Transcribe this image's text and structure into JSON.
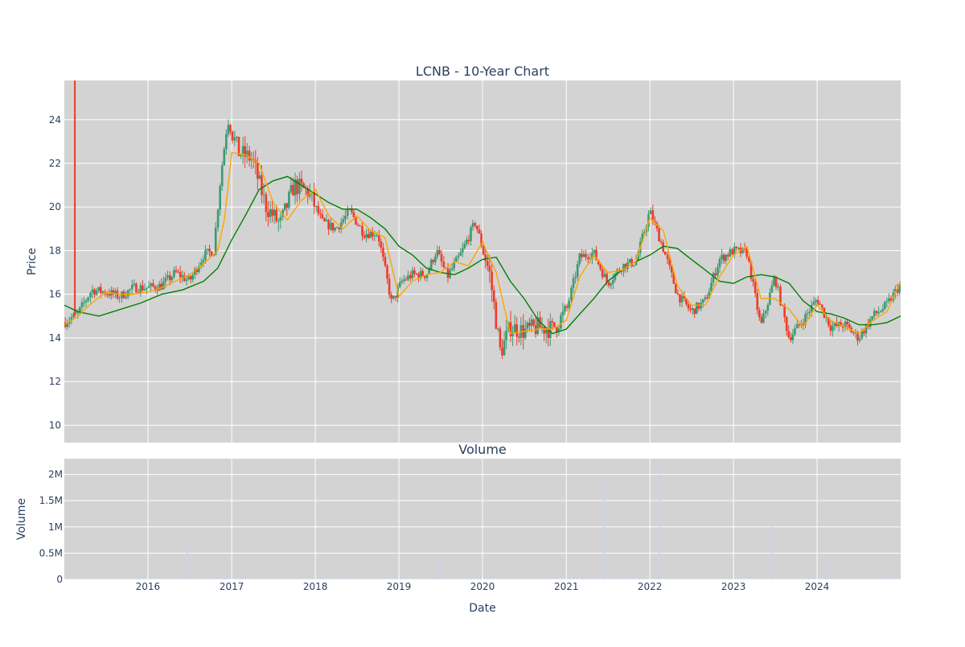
{
  "chart_data": [
    {
      "type": "candlestick",
      "title": "LCNB - 10-Year Chart",
      "ylabel": "Price",
      "ylim": [
        9.2,
        25.8
      ],
      "y_ticks": [
        10,
        12,
        14,
        16,
        18,
        20,
        22,
        24
      ],
      "grid": true,
      "legend": "none",
      "colors": {
        "increasing": "#3d9970",
        "decreasing": "#ef3b2c",
        "ma_short": "#ffa500",
        "ma_long": "#008000",
        "background": "#d3d3d3"
      },
      "series": [
        {
          "name": "",
          "role": "close_price",
          "x": [
            "2015-01-01",
            "2015-03-01",
            "2015-05-01",
            "2015-07-01",
            "2015-09-01",
            "2015-11-01",
            "2016-01-01",
            "2016-03-01",
            "2016-05-01",
            "2016-07-01",
            "2016-09-01",
            "2016-10-15",
            "2016-11-15",
            "2016-12-15",
            "2017-02-01",
            "2017-04-01",
            "2017-06-01",
            "2017-08-01",
            "2017-10-01",
            "2017-12-01",
            "2018-02-01",
            "2018-04-01",
            "2018-06-01",
            "2018-08-01",
            "2018-10-01",
            "2018-12-01",
            "2019-01-15",
            "2019-03-01",
            "2019-05-01",
            "2019-06-15",
            "2019-08-01",
            "2019-10-01",
            "2019-12-01",
            "2020-02-01",
            "2020-03-20",
            "2020-05-01",
            "2020-07-01",
            "2020-09-01",
            "2020-11-01",
            "2021-01-01",
            "2021-03-01",
            "2021-05-01",
            "2021-07-01",
            "2021-09-01",
            "2021-11-01",
            "2022-01-01",
            "2022-03-01",
            "2022-05-01",
            "2022-07-01",
            "2022-09-01",
            "2022-11-01",
            "2023-01-01",
            "2023-03-01",
            "2023-05-01",
            "2023-07-01",
            "2023-09-01",
            "2023-11-01",
            "2024-01-01",
            "2024-03-01",
            "2024-05-01",
            "2024-07-01",
            "2024-09-01",
            "2024-11-01",
            "2024-12-31"
          ],
          "values": [
            14.7,
            15.1,
            16.2,
            16.1,
            15.9,
            16.3,
            16.3,
            16.4,
            17.0,
            16.6,
            17.8,
            18.0,
            21.5,
            24.0,
            22.5,
            22.2,
            20.0,
            19.2,
            21.0,
            20.7,
            19.3,
            19.0,
            19.8,
            18.8,
            18.8,
            15.6,
            16.6,
            16.9,
            16.9,
            18.0,
            16.8,
            17.9,
            19.3,
            17.0,
            13.3,
            14.5,
            14.3,
            14.5,
            14.4,
            15.2,
            17.7,
            17.9,
            16.5,
            17.3,
            17.5,
            19.8,
            18.1,
            16.0,
            15.2,
            15.7,
            17.6,
            18.0,
            17.9,
            14.5,
            16.8,
            14.0,
            14.8,
            15.8,
            14.5,
            14.6,
            14.0,
            15.0,
            15.5,
            16.5
          ]
        },
        {
          "name": "",
          "role": "moving_average_short",
          "x": [
            "2015-01-01",
            "2015-03-01",
            "2015-05-01",
            "2015-07-01",
            "2015-09-01",
            "2015-11-01",
            "2016-01-01",
            "2016-03-01",
            "2016-05-01",
            "2016-07-01",
            "2016-09-01",
            "2016-11-01",
            "2016-12-01",
            "2017-01-01",
            "2017-03-01",
            "2017-05-01",
            "2017-07-01",
            "2017-09-01",
            "2017-11-01",
            "2018-01-01",
            "2018-03-01",
            "2018-05-01",
            "2018-07-01",
            "2018-09-01",
            "2018-11-01",
            "2019-01-01",
            "2019-03-01",
            "2019-05-01",
            "2019-07-01",
            "2019-09-01",
            "2019-11-01",
            "2020-01-01",
            "2020-03-01",
            "2020-05-01",
            "2020-07-01",
            "2020-09-01",
            "2020-11-01",
            "2021-01-01",
            "2021-03-01",
            "2021-05-01",
            "2021-07-01",
            "2021-09-01",
            "2021-11-01",
            "2022-01-01",
            "2022-03-01",
            "2022-05-01",
            "2022-07-01",
            "2022-09-01",
            "2022-11-01",
            "2023-01-01",
            "2023-03-01",
            "2023-05-01",
            "2023-07-01",
            "2023-09-01",
            "2023-11-01",
            "2024-01-01",
            "2024-03-01",
            "2024-05-01",
            "2024-07-01",
            "2024-09-01",
            "2024-11-01",
            "2024-12-31"
          ],
          "values": [
            14.6,
            15.0,
            15.6,
            16.1,
            16.0,
            16.0,
            16.1,
            16.3,
            16.6,
            16.9,
            17.4,
            18.0,
            19.5,
            22.5,
            22.4,
            22.0,
            20.2,
            19.4,
            20.3,
            20.8,
            19.6,
            19.0,
            19.6,
            18.9,
            18.6,
            15.9,
            16.6,
            16.9,
            17.0,
            17.5,
            17.3,
            18.4,
            17.0,
            14.2,
            14.3,
            14.4,
            14.4,
            14.8,
            16.8,
            17.8,
            17.0,
            17.1,
            17.5,
            19.5,
            18.9,
            16.4,
            15.5,
            15.5,
            16.8,
            17.8,
            18.2,
            15.8,
            15.8,
            15.3,
            14.5,
            15.5,
            14.8,
            14.5,
            14.2,
            14.8,
            15.2,
            16.6
          ]
        },
        {
          "name": "",
          "role": "moving_average_long",
          "x": [
            "2015-01-01",
            "2015-03-01",
            "2015-06-01",
            "2015-09-01",
            "2015-12-01",
            "2016-03-01",
            "2016-06-01",
            "2016-09-01",
            "2016-11-01",
            "2017-01-01",
            "2017-03-01",
            "2017-05-01",
            "2017-07-01",
            "2017-09-01",
            "2017-11-01",
            "2018-01-01",
            "2018-03-01",
            "2018-05-01",
            "2018-07-01",
            "2018-09-01",
            "2018-11-01",
            "2019-01-01",
            "2019-03-01",
            "2019-05-01",
            "2019-07-01",
            "2019-09-01",
            "2019-11-01",
            "2020-01-01",
            "2020-03-01",
            "2020-05-01",
            "2020-07-01",
            "2020-09-01",
            "2020-11-01",
            "2021-01-01",
            "2021-03-01",
            "2021-05-01",
            "2021-07-01",
            "2021-09-01",
            "2021-11-01",
            "2022-01-01",
            "2022-03-01",
            "2022-05-01",
            "2022-07-01",
            "2022-09-01",
            "2022-11-01",
            "2023-01-01",
            "2023-03-01",
            "2023-05-01",
            "2023-07-01",
            "2023-09-01",
            "2023-11-01",
            "2024-01-01",
            "2024-03-01",
            "2024-05-01",
            "2024-07-01",
            "2024-09-01",
            "2024-11-01",
            "2024-12-31"
          ],
          "values": [
            15.5,
            15.2,
            15.0,
            15.3,
            15.6,
            16.0,
            16.2,
            16.6,
            17.2,
            18.5,
            19.6,
            20.8,
            21.2,
            21.4,
            21.0,
            20.6,
            20.2,
            19.9,
            19.9,
            19.5,
            19.0,
            18.2,
            17.8,
            17.2,
            17.0,
            16.9,
            17.2,
            17.6,
            17.7,
            16.6,
            15.8,
            14.8,
            14.2,
            14.4,
            15.1,
            15.8,
            16.6,
            17.1,
            17.5,
            17.8,
            18.2,
            18.1,
            17.6,
            17.1,
            16.6,
            16.5,
            16.8,
            16.9,
            16.8,
            16.5,
            15.7,
            15.2,
            15.1,
            14.9,
            14.6,
            14.6,
            14.7,
            15.0
          ]
        }
      ]
    },
    {
      "type": "bar",
      "title": "Volume",
      "xlabel": "Date",
      "ylabel": "Volume",
      "ylim": [
        0,
        2300000
      ],
      "y_ticks": [
        0,
        500000,
        1000000,
        1500000,
        2000000
      ],
      "y_tick_labels": [
        "0",
        "0.5M",
        "1M",
        "1.5M",
        "2M"
      ],
      "x_range": [
        "2015-01-01",
        "2024-12-31"
      ],
      "x_ticks": [
        "2016-01-01",
        "2017-01-01",
        "2018-01-01",
        "2019-01-01",
        "2020-01-01",
        "2021-01-01",
        "2022-01-01",
        "2023-01-01",
        "2024-01-01"
      ],
      "x_tick_labels": [
        "2016",
        "2017",
        "2018",
        "2019",
        "2020",
        "2021",
        "2022",
        "2023",
        "2024"
      ],
      "bar_color": "#c8d4ef",
      "base_level": 20000,
      "spikes": [
        {
          "x": "2015-11-20",
          "value": 110000
        },
        {
          "x": "2016-06-20",
          "value": 820000
        },
        {
          "x": "2016-12-05",
          "value": 120000
        },
        {
          "x": "2017-07-01",
          "value": 160000
        },
        {
          "x": "2018-04-10",
          "value": 80000
        },
        {
          "x": "2019-06-20",
          "value": 480000
        },
        {
          "x": "2019-08-20",
          "value": 90000
        },
        {
          "x": "2021-01-15",
          "value": 330000
        },
        {
          "x": "2021-03-10",
          "value": 120000
        },
        {
          "x": "2021-06-15",
          "value": 1870000
        },
        {
          "x": "2021-07-20",
          "value": 150000
        },
        {
          "x": "2021-11-15",
          "value": 140000
        },
        {
          "x": "2022-02-10",
          "value": 2200000
        },
        {
          "x": "2023-06-15",
          "value": 1080000
        },
        {
          "x": "2024-02-15",
          "value": 420000
        },
        {
          "x": "2024-06-10",
          "value": 190000
        },
        {
          "x": "2024-11-01",
          "value": 110000
        }
      ]
    }
  ]
}
